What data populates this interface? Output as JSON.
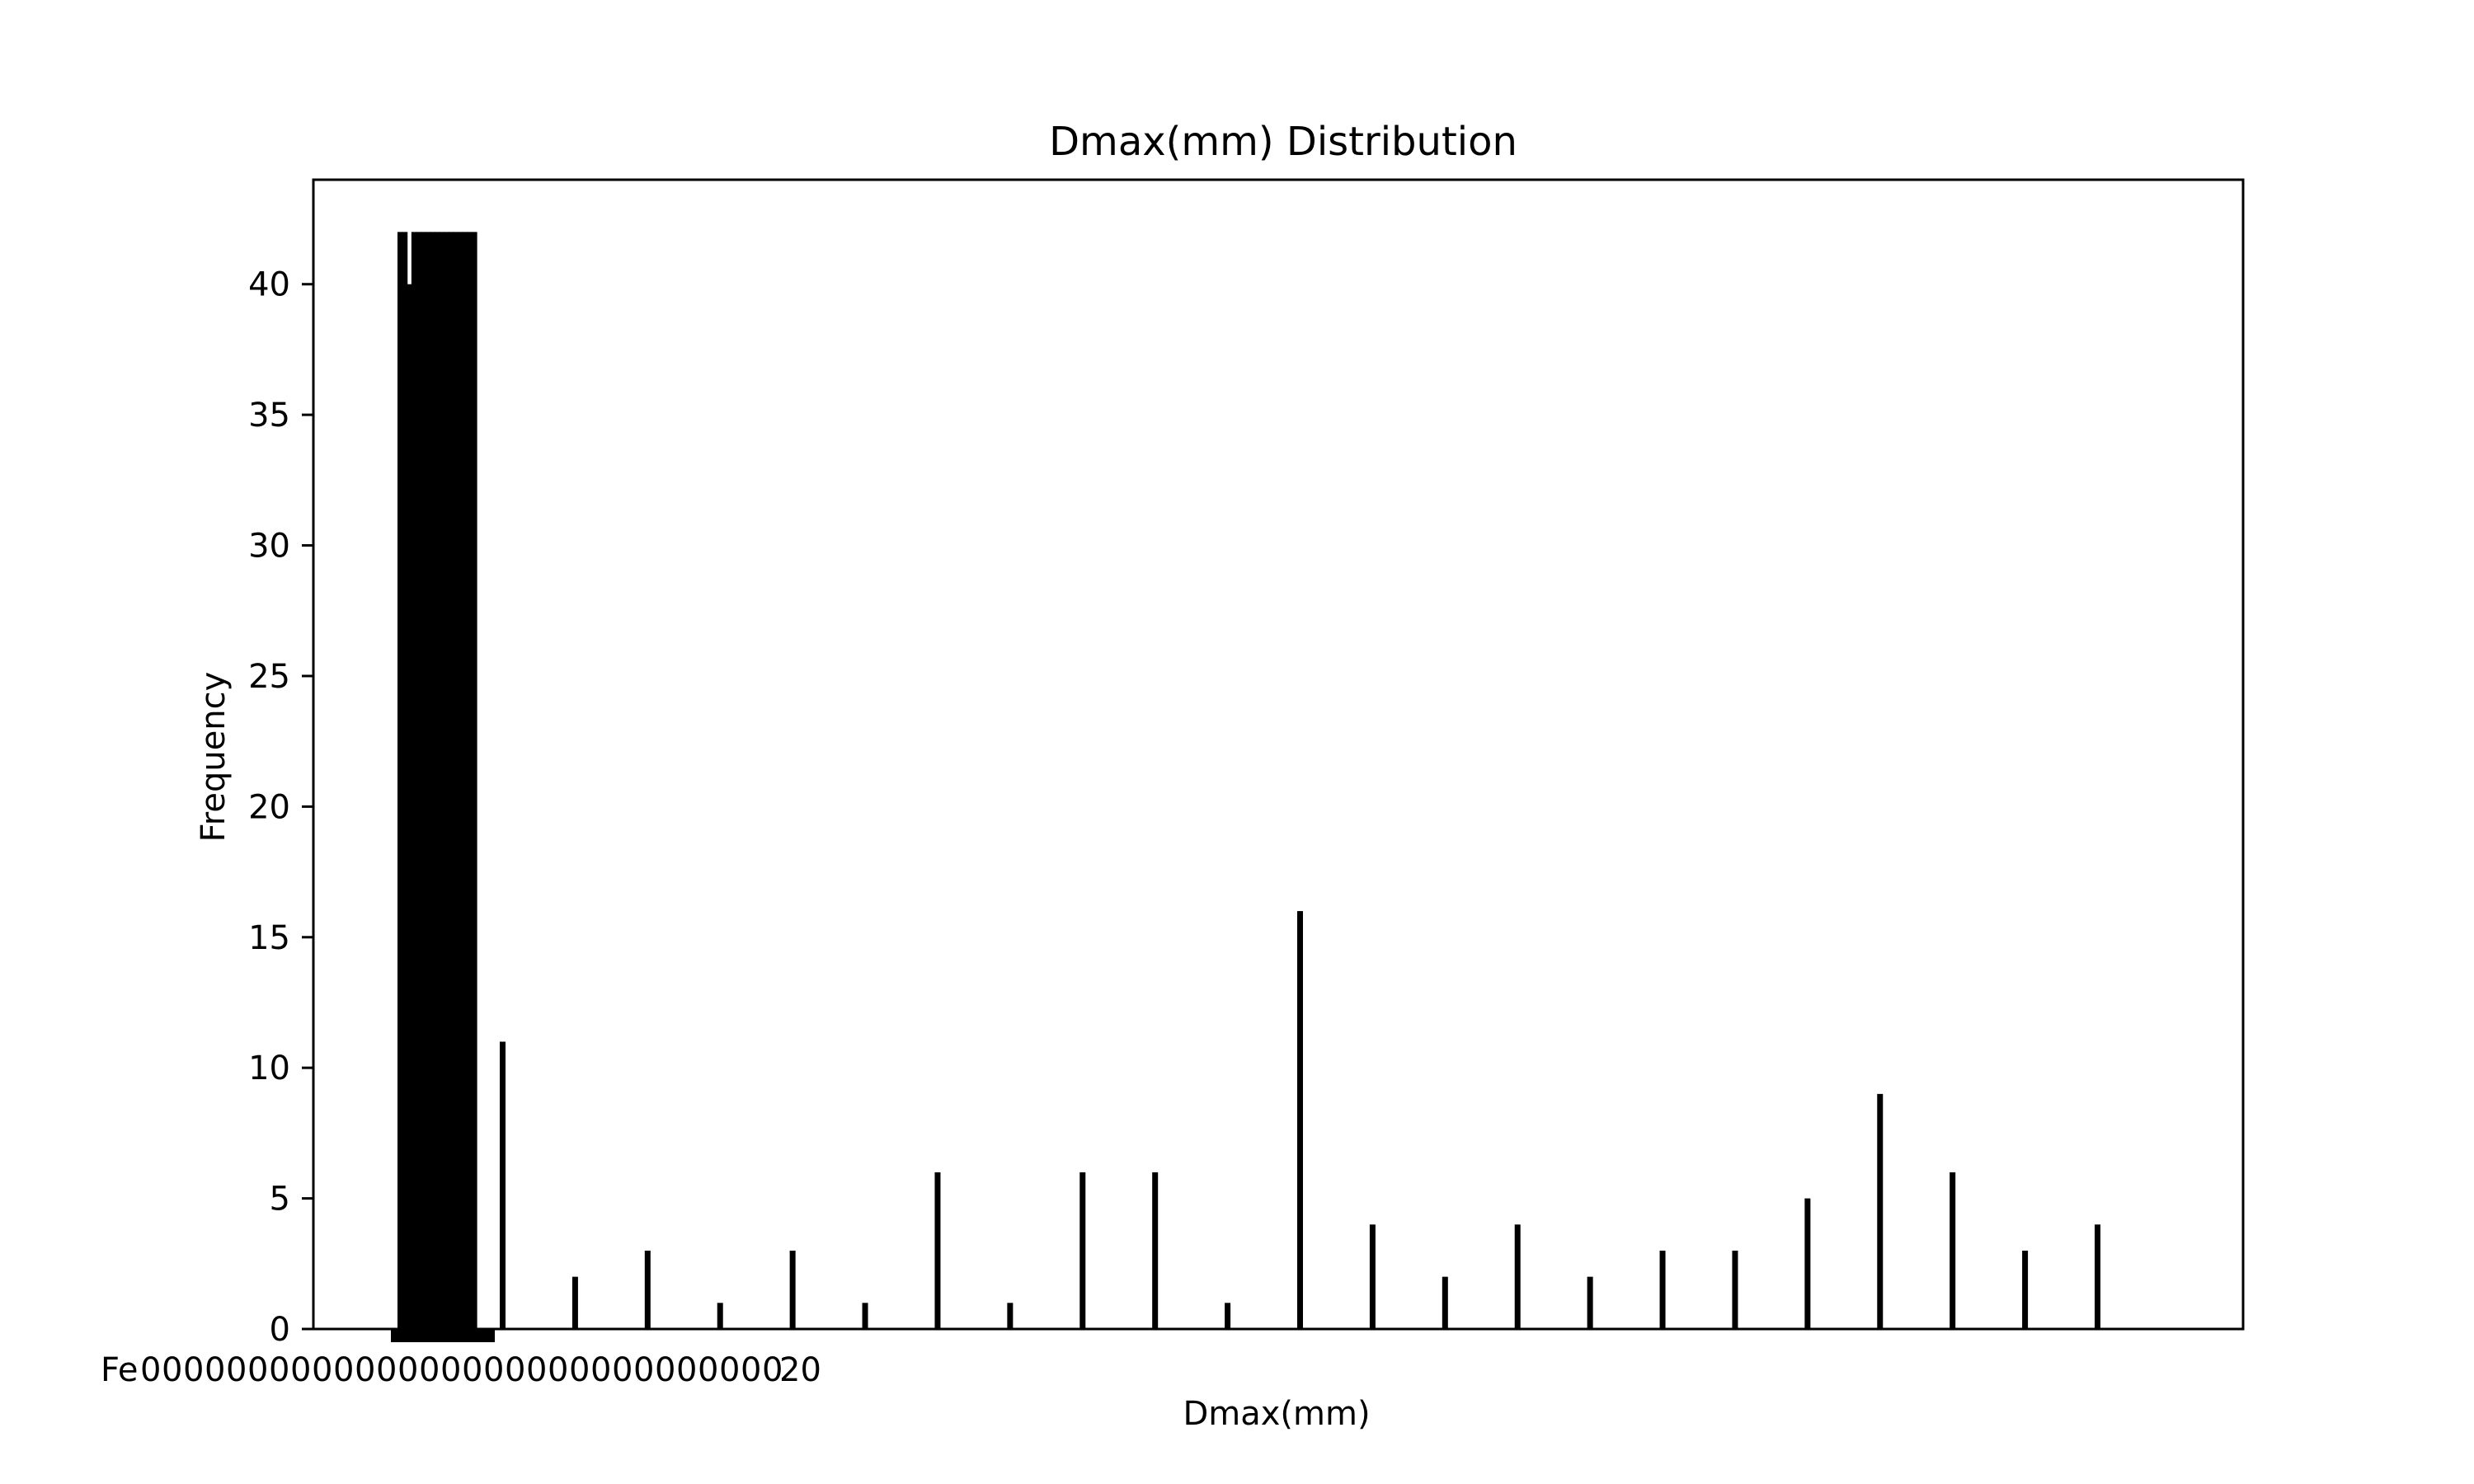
{
  "chart_data": {
    "type": "bar",
    "title": "Dmax(mm) Distribution",
    "xlabel": "Dmax(mm)",
    "ylabel": "Frequency",
    "ylim": [
      0,
      44
    ],
    "yticks": [
      0,
      5,
      10,
      15,
      20,
      25,
      30,
      35,
      40
    ],
    "grid": false,
    "legend": "none",
    "note": "x-axis categories are overlapping, unreadable text labels; bar heights estimated from the y-axis",
    "x_tick_text_visible": "Fe",
    "x_tick_text_end": "20",
    "bar_color": "#000000",
    "values": [
      42,
      42,
      40,
      42,
      42,
      42,
      42,
      42,
      42,
      42,
      42,
      42,
      42,
      42,
      42,
      42,
      42,
      11,
      2,
      3,
      1,
      3,
      1,
      6,
      1,
      6,
      6,
      1,
      16,
      4,
      2,
      4,
      2,
      3,
      3,
      5,
      9,
      6,
      3,
      4
    ]
  }
}
